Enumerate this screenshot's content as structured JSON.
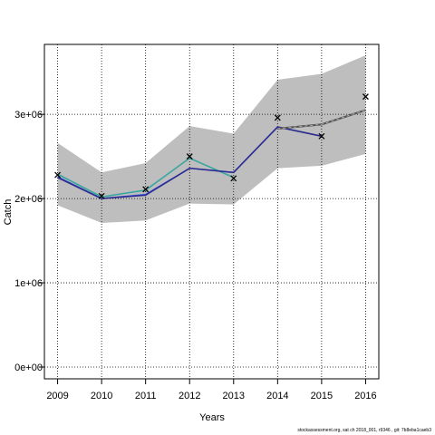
{
  "chart_data": {
    "type": "line",
    "xlabel": "Years",
    "ylabel": "Catch",
    "xlim": [
      2008.7,
      2016.3
    ],
    "ylim": [
      -140000,
      3830000
    ],
    "x_ticks": [
      2009,
      2010,
      2011,
      2012,
      2013,
      2014,
      2015,
      2016
    ],
    "y_ticks": [
      0,
      1000000,
      2000000,
      3000000
    ],
    "y_tick_labels": [
      "0e+00",
      "1e+06",
      "2e+06",
      "3e+06"
    ],
    "grid": "dotted",
    "band": {
      "x": [
        2009,
        2010,
        2011,
        2012,
        2013,
        2014,
        2015,
        2016
      ],
      "lower": [
        1920000,
        1710000,
        1740000,
        1940000,
        1930000,
        2360000,
        2390000,
        2530000
      ],
      "upper": [
        2660000,
        2310000,
        2420000,
        2860000,
        2770000,
        3410000,
        3480000,
        3700000
      ],
      "color": "#bebebe"
    },
    "observed": {
      "marker": "x",
      "x": [
        2009,
        2010,
        2011,
        2012,
        2013,
        2014,
        2015,
        2016
      ],
      "values": [
        2280000,
        2030000,
        2110000,
        2500000,
        2240000,
        2960000,
        2740000,
        3210000
      ]
    },
    "series": [
      {
        "x": [
          2009,
          2010,
          2011,
          2012,
          2013
        ],
        "values": [
          2290000,
          2020000,
          2100000,
          2480000,
          2250000
        ],
        "color": "#3aa6a0",
        "width": 1.6
      },
      {
        "x": [
          2009,
          2010,
          2011,
          2012,
          2013,
          2014
        ],
        "values": [
          2260000,
          2000000,
          2050000,
          2360000,
          2310000,
          2850000
        ],
        "color": "#3f5fe0",
        "width": 1.3
      },
      {
        "x": [
          2009,
          2010,
          2011,
          2012,
          2013,
          2014,
          2015
        ],
        "values": [
          2250000,
          2000000,
          2040000,
          2360000,
          2310000,
          2850000,
          2740000
        ],
        "color": "#2a2a90",
        "width": 1.6
      },
      {
        "x": [
          2014,
          2015,
          2016
        ],
        "values": [
          2830000,
          2880000,
          3050000
        ],
        "color": "#555555",
        "width": 2.2
      },
      {
        "x": [
          2014,
          2015,
          2016
        ],
        "values": [
          2830000,
          2880000,
          3050000
        ],
        "color": "#c0c0c0",
        "width": 0.8,
        "dash": "3,3"
      }
    ]
  },
  "footer": "stockassessment.org, sat ch  2018_001, r9346 ,  git: 7b8eba1caeb3"
}
